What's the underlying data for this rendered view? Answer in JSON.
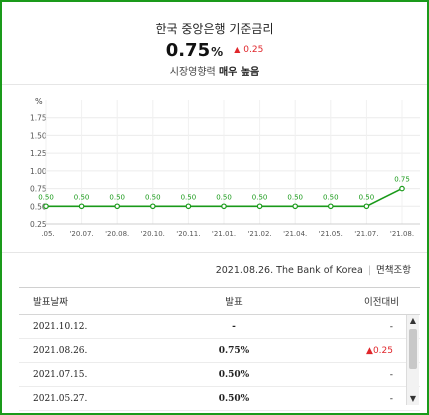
{
  "header": {
    "title": "한국 중앙은행 기준금리",
    "rate_value": "0.75",
    "rate_unit": "%",
    "change_icon": "triangle-up-icon",
    "change_value": "0.25",
    "subtitle_prefix": "시장영향력",
    "subtitle_strong": "매우 높음"
  },
  "colors": {
    "frame": "#1a9a1a",
    "line": "#1a9a1a",
    "up": "#e0262b"
  },
  "chart_data": {
    "type": "line",
    "ylabel": "%",
    "ylim": [
      0.25,
      2.0
    ],
    "yticks": [
      "0.25",
      "0.50",
      "0.75",
      "1.00",
      "1.25",
      "1.50",
      "1.75"
    ],
    "categories": [
      ".05.",
      "'20.07.",
      "'20.08.",
      "'20.10.",
      "'20.11.",
      "'21.01.",
      "'21.02.",
      "'21.04.",
      "'21.05.",
      "'21.07.",
      "'21.08."
    ],
    "values": [
      0.5,
      0.5,
      0.5,
      0.5,
      0.5,
      0.5,
      0.5,
      0.5,
      0.5,
      0.5,
      0.75
    ],
    "data_labels": [
      "0.50",
      "0.50",
      "0.50",
      "0.50",
      "0.50",
      "0.50",
      "0.50",
      "0.50",
      "0.50",
      "0.50",
      "0.75"
    ],
    "grid": true
  },
  "source": {
    "date_source": "2021.08.26. The Bank of Korea",
    "disclaimer": "면책조항"
  },
  "table": {
    "headers": [
      "발표날짜",
      "발표",
      "이전대비"
    ],
    "rows": [
      {
        "date": "2021.10.12.",
        "value": "-",
        "change": "-",
        "up": false
      },
      {
        "date": "2021.08.26.",
        "value": "0.75%",
        "change": "0.25",
        "up": true
      },
      {
        "date": "2021.07.15.",
        "value": "0.50%",
        "change": "-",
        "up": false
      },
      {
        "date": "2021.05.27.",
        "value": "0.50%",
        "change": "-",
        "up": false
      }
    ]
  }
}
